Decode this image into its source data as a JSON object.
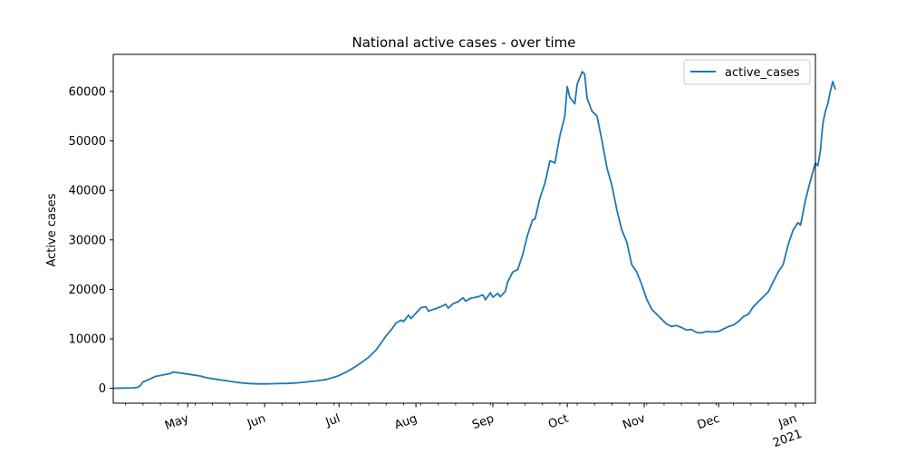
{
  "chart_data": {
    "type": "line",
    "title": "National active cases - over time",
    "xlabel": "",
    "ylabel": "Active cases",
    "xlim": [
      "2020-04-01",
      "2021-01-09"
    ],
    "ylim": [
      -3000,
      67500
    ],
    "yticks": [
      0,
      10000,
      20000,
      30000,
      40000,
      50000,
      60000
    ],
    "ytick_labels": [
      "0",
      "10000",
      "20000",
      "30000",
      "40000",
      "50000",
      "60000"
    ],
    "xticks": [
      {
        "date": "2020-05-01",
        "label": "May"
      },
      {
        "date": "2020-06-01",
        "label": "Jun"
      },
      {
        "date": "2020-07-01",
        "label": "Jul"
      },
      {
        "date": "2020-08-01",
        "label": "Aug"
      },
      {
        "date": "2020-09-01",
        "label": "Sep"
      },
      {
        "date": "2020-10-01",
        "label": "Oct"
      },
      {
        "date": "2020-11-01",
        "label": "Nov"
      },
      {
        "date": "2020-12-01",
        "label": "Dec"
      },
      {
        "date": "2021-01-01",
        "label": "Jan",
        "sublabel": "2021"
      }
    ],
    "grid": false,
    "legend": "top-right",
    "series": [
      {
        "name": "active_cases",
        "color": "#1f77b4",
        "points": [
          [
            "2020-04-01",
            0
          ],
          [
            "2020-04-05",
            50
          ],
          [
            "2020-04-09",
            100
          ],
          [
            "2020-04-11",
            200
          ],
          [
            "2020-04-12",
            600
          ],
          [
            "2020-04-13",
            1300
          ],
          [
            "2020-04-15",
            1700
          ],
          [
            "2020-04-18",
            2400
          ],
          [
            "2020-04-21",
            2700
          ],
          [
            "2020-04-24",
            3000
          ],
          [
            "2020-04-25",
            3300
          ],
          [
            "2020-04-28",
            3100
          ],
          [
            "2020-05-02",
            2800
          ],
          [
            "2020-05-06",
            2500
          ],
          [
            "2020-05-09",
            2100
          ],
          [
            "2020-05-13",
            1800
          ],
          [
            "2020-05-17",
            1500
          ],
          [
            "2020-05-21",
            1200
          ],
          [
            "2020-05-25",
            1000
          ],
          [
            "2020-05-29",
            900
          ],
          [
            "2020-06-02",
            900
          ],
          [
            "2020-06-06",
            950
          ],
          [
            "2020-06-10",
            1000
          ],
          [
            "2020-06-14",
            1100
          ],
          [
            "2020-06-18",
            1300
          ],
          [
            "2020-06-22",
            1500
          ],
          [
            "2020-06-26",
            1800
          ],
          [
            "2020-06-30",
            2400
          ],
          [
            "2020-07-01",
            2600
          ],
          [
            "2020-07-04",
            3300
          ],
          [
            "2020-07-07",
            4200
          ],
          [
            "2020-07-10",
            5200
          ],
          [
            "2020-07-13",
            6300
          ],
          [
            "2020-07-16",
            7800
          ],
          [
            "2020-07-18",
            9200
          ],
          [
            "2020-07-20",
            10600
          ],
          [
            "2020-07-22",
            11800
          ],
          [
            "2020-07-24",
            13200
          ],
          [
            "2020-07-26",
            13800
          ],
          [
            "2020-07-27",
            13500
          ],
          [
            "2020-07-29",
            14800
          ],
          [
            "2020-07-30",
            14100
          ],
          [
            "2020-08-01",
            15200
          ],
          [
            "2020-08-03",
            16300
          ],
          [
            "2020-08-05",
            16500
          ],
          [
            "2020-08-06",
            15600
          ],
          [
            "2020-08-09",
            16100
          ],
          [
            "2020-08-11",
            16500
          ],
          [
            "2020-08-13",
            17000
          ],
          [
            "2020-08-14",
            16200
          ],
          [
            "2020-08-16",
            17100
          ],
          [
            "2020-08-18",
            17500
          ],
          [
            "2020-08-20",
            18300
          ],
          [
            "2020-08-21",
            17600
          ],
          [
            "2020-08-23",
            18200
          ],
          [
            "2020-08-26",
            18500
          ],
          [
            "2020-08-28",
            18900
          ],
          [
            "2020-08-29",
            17900
          ],
          [
            "2020-08-31",
            19300
          ],
          [
            "2020-09-01",
            18400
          ],
          [
            "2020-09-03",
            19200
          ],
          [
            "2020-09-04",
            18500
          ],
          [
            "2020-09-06",
            19600
          ],
          [
            "2020-09-07",
            21500
          ],
          [
            "2020-09-09",
            23500
          ],
          [
            "2020-09-11",
            24000
          ],
          [
            "2020-09-13",
            27000
          ],
          [
            "2020-09-15",
            31000
          ],
          [
            "2020-09-17",
            34000
          ],
          [
            "2020-09-18",
            34200
          ],
          [
            "2020-09-20",
            38500
          ],
          [
            "2020-09-22",
            41500
          ],
          [
            "2020-09-24",
            46000
          ],
          [
            "2020-09-25",
            45800
          ],
          [
            "2020-09-26",
            45500
          ],
          [
            "2020-09-28",
            51000
          ],
          [
            "2020-09-30",
            55000
          ],
          [
            "2020-10-01",
            61000
          ],
          [
            "2020-10-02",
            58800
          ],
          [
            "2020-10-04",
            57500
          ],
          [
            "2020-10-05",
            61500
          ],
          [
            "2020-10-07",
            64000
          ],
          [
            "2020-10-08",
            63500
          ],
          [
            "2020-10-09",
            58500
          ],
          [
            "2020-10-11",
            56000
          ],
          [
            "2020-10-13",
            55000
          ],
          [
            "2020-10-15",
            50000
          ],
          [
            "2020-10-17",
            44500
          ],
          [
            "2020-10-19",
            41000
          ],
          [
            "2020-10-21",
            36000
          ],
          [
            "2020-10-23",
            32000
          ],
          [
            "2020-10-25",
            29500
          ],
          [
            "2020-10-27",
            25000
          ],
          [
            "2020-10-29",
            23500
          ],
          [
            "2020-10-31",
            21000
          ],
          [
            "2020-11-02",
            18000
          ],
          [
            "2020-11-04",
            16000
          ],
          [
            "2020-11-06",
            15000
          ],
          [
            "2020-11-08",
            14000
          ],
          [
            "2020-11-10",
            13000
          ],
          [
            "2020-11-12",
            12500
          ],
          [
            "2020-11-14",
            12700
          ],
          [
            "2020-11-16",
            12300
          ],
          [
            "2020-11-18",
            11800
          ],
          [
            "2020-11-20",
            11900
          ],
          [
            "2020-11-22",
            11300
          ],
          [
            "2020-11-24",
            11200
          ],
          [
            "2020-11-26",
            11500
          ],
          [
            "2020-11-28",
            11400
          ],
          [
            "2020-12-01",
            11500
          ],
          [
            "2020-12-03",
            12000
          ],
          [
            "2020-12-05",
            12500
          ],
          [
            "2020-12-07",
            12800
          ],
          [
            "2020-12-09",
            13500
          ],
          [
            "2020-12-11",
            14500
          ],
          [
            "2020-12-13",
            15000
          ],
          [
            "2020-12-15",
            16500
          ],
          [
            "2020-12-17",
            17500
          ],
          [
            "2020-12-19",
            18500
          ],
          [
            "2020-12-21",
            19500
          ],
          [
            "2020-12-23",
            21500
          ],
          [
            "2020-12-25",
            23500
          ],
          [
            "2020-12-27",
            25000
          ],
          [
            "2020-12-29",
            29000
          ],
          [
            "2020-12-31",
            32000
          ],
          [
            "2021-01-02",
            33500
          ],
          [
            "2021-01-03",
            33000
          ],
          [
            "2021-01-05",
            38000
          ],
          [
            "2021-01-07",
            42000
          ],
          [
            "2021-01-09",
            45500
          ],
          [
            "2021-01-10",
            45000
          ],
          [
            "2021-01-11",
            48000
          ],
          [
            "2021-01-12",
            53500
          ],
          [
            "2021-01-13",
            56000
          ],
          [
            "2021-01-14",
            57500
          ],
          [
            "2021-01-15",
            60000
          ],
          [
            "2021-01-16",
            62000
          ],
          [
            "2021-01-17",
            60500
          ]
        ]
      }
    ]
  }
}
